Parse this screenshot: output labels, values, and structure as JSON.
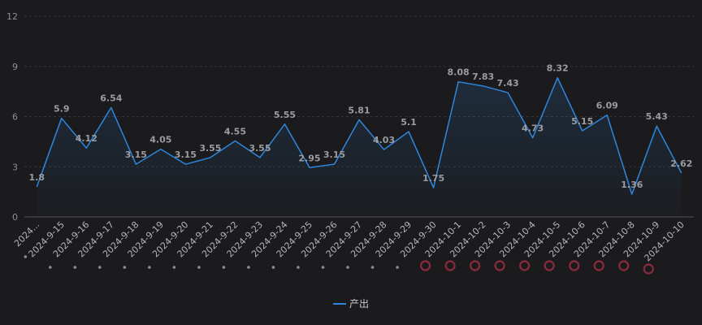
{
  "chart_data": {
    "type": "area",
    "title": "",
    "xlabel": "",
    "ylabel": "",
    "ylim": [
      0,
      12
    ],
    "yticks": [
      0,
      3,
      6,
      9,
      12
    ],
    "grid": true,
    "legend_position": "bottom-center",
    "categories": [
      "2024...",
      "2024-9-15",
      "2024-9-16",
      "2024-9-17",
      "2024-9-18",
      "2024-9-19",
      "2024-9-20",
      "2024-9-21",
      "2024-9-22",
      "2024-9-23",
      "2024-9-24",
      "2024-9-25",
      "2024-9-26",
      "2024-9-27",
      "2024-9-28",
      "2024-9-29",
      "2024-9-30",
      "2024-10-1",
      "2024-10-2",
      "2024-10-3",
      "2024-10-4",
      "2024-10-5",
      "2024-10-6",
      "2024-10-7",
      "2024-10-8",
      "2024-10-9",
      "2024-10-10"
    ],
    "series": [
      {
        "name": "产出",
        "color": "#2e86de",
        "values": [
          1.8,
          5.9,
          4.12,
          6.54,
          3.15,
          4.05,
          3.15,
          3.55,
          4.55,
          3.55,
          5.55,
          2.95,
          3.15,
          5.81,
          4.03,
          5.1,
          1.75,
          8.08,
          7.83,
          7.43,
          4.73,
          8.32,
          5.15,
          6.09,
          1.36,
          5.43,
          2.62
        ]
      }
    ],
    "marker_circles": [
      16,
      17,
      18,
      19,
      20,
      21,
      22,
      23,
      24,
      25
    ],
    "marker_color": "#8b2a3c",
    "dot_color": "#8d8f96"
  }
}
